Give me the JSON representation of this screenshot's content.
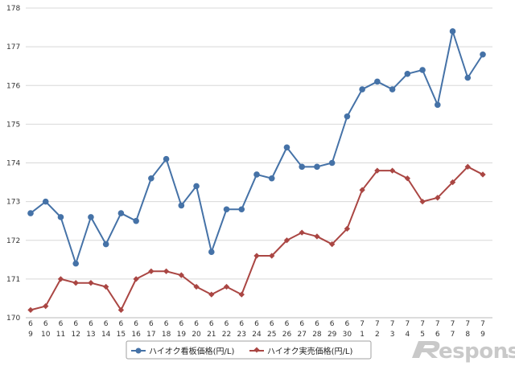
{
  "chart_data": {
    "type": "line",
    "x_month": [
      "6",
      "6",
      "6",
      "6",
      "6",
      "6",
      "6",
      "6",
      "6",
      "6",
      "6",
      "6",
      "6",
      "6",
      "6",
      "6",
      "6",
      "6",
      "6",
      "6",
      "6",
      "6",
      "7",
      "7",
      "7",
      "7",
      "7",
      "7",
      "7",
      "7",
      "7"
    ],
    "x_day": [
      "9",
      "10",
      "11",
      "12",
      "13",
      "14",
      "15",
      "16",
      "17",
      "18",
      "19",
      "20",
      "21",
      "22",
      "23",
      "24",
      "25",
      "26",
      "27",
      "28",
      "29",
      "30",
      "1",
      "2",
      "3",
      "4",
      "5",
      "6",
      "7",
      "8",
      "9"
    ],
    "ylim": [
      170,
      178
    ],
    "y_ticks": [
      "170",
      "171",
      "172",
      "173",
      "174",
      "175",
      "176",
      "177",
      "178"
    ],
    "grid": true,
    "legend_position": "bottom",
    "series": [
      {
        "name": "ハイオク看板価格(円/L)",
        "color": "#4572a7",
        "marker": "circle",
        "values": [
          172.7,
          173.0,
          172.6,
          171.4,
          172.6,
          171.9,
          172.7,
          172.5,
          173.6,
          174.1,
          172.9,
          173.4,
          171.7,
          172.8,
          172.8,
          173.7,
          173.6,
          174.4,
          173.9,
          173.9,
          174.0,
          175.2,
          175.9,
          176.1,
          175.9,
          176.3,
          176.4,
          175.5,
          177.4,
          176.2,
          176.8
        ]
      },
      {
        "name": "ハイオク実売価格(円/L)",
        "color": "#aa4643",
        "marker": "diamond",
        "values": [
          170.2,
          170.3,
          171.0,
          170.9,
          170.9,
          170.8,
          170.2,
          171.0,
          171.2,
          171.2,
          171.1,
          170.8,
          170.6,
          170.8,
          170.6,
          171.6,
          171.6,
          172.0,
          172.2,
          172.1,
          171.9,
          172.3,
          173.3,
          173.8,
          173.8,
          173.6,
          173.0,
          173.1,
          173.5,
          173.9,
          173.7
        ]
      }
    ]
  },
  "watermark": {
    "text": "esponse",
    "dot": "."
  }
}
